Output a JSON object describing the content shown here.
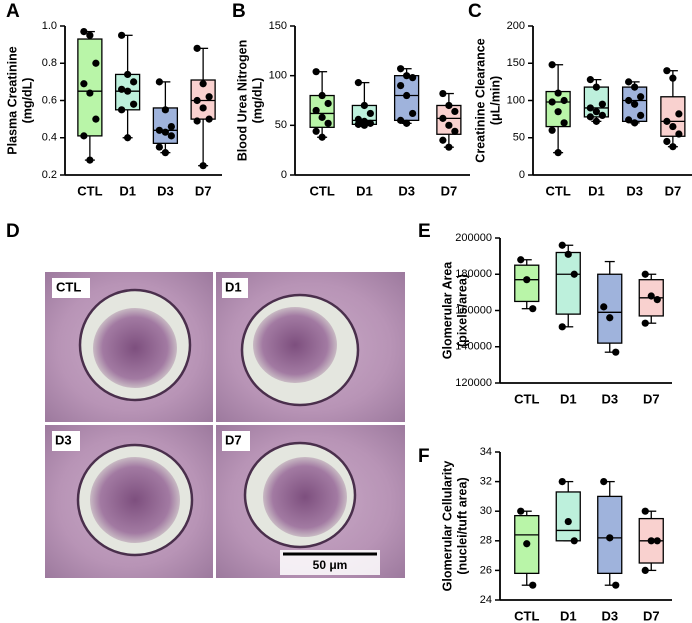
{
  "chart_data": [
    {
      "type": "box",
      "panel": "A",
      "y_label": [
        "Plasma Creatinine",
        "(mg/dL)"
      ],
      "categories": [
        "CTL",
        "D1",
        "D3",
        "D7"
      ],
      "colors": [
        "#b9f5a8",
        "#bdf0dc",
        "#9fb3dc",
        "#f9d1cf"
      ],
      "ylim": [
        0.2,
        1
      ],
      "yticks": [
        0.2,
        0.4,
        0.6,
        0.8,
        {
          "value": 1,
          "label": "1.0"
        }
      ],
      "boxes": [
        {
          "min": 0.28,
          "q1": 0.41,
          "median": 0.65,
          "q3": 0.93,
          "max": 0.97,
          "points": [
            0.97,
            0.95,
            0.8,
            0.69,
            0.64,
            0.5,
            0.41,
            0.28
          ]
        },
        {
          "min": 0.4,
          "q1": 0.55,
          "median": 0.65,
          "q3": 0.74,
          "max": 0.95,
          "points": [
            0.95,
            0.74,
            0.7,
            0.66,
            0.65,
            0.58,
            0.55,
            0.4
          ]
        },
        {
          "min": 0.32,
          "q1": 0.37,
          "median": 0.44,
          "q3": 0.56,
          "max": 0.7,
          "points": [
            0.7,
            0.55,
            0.46,
            0.44,
            0.43,
            0.41,
            0.35,
            0.32
          ]
        },
        {
          "min": 0.25,
          "q1": 0.5,
          "median": 0.6,
          "q3": 0.71,
          "max": 0.88,
          "points": [
            0.88,
            0.69,
            0.62,
            0.6,
            0.56,
            0.5,
            0.49,
            0.25
          ]
        }
      ]
    },
    {
      "type": "box",
      "panel": "B",
      "y_label": [
        "Blood Urea Nitrogen",
        "(mg/dL)"
      ],
      "categories": [
        "CTL",
        "D1",
        "D3",
        "D7"
      ],
      "colors": [
        "#b9f5a8",
        "#bdf0dc",
        "#9fb3dc",
        "#f9d1cf"
      ],
      "ylim": [
        0,
        150
      ],
      "yticks": [
        0,
        50,
        100,
        150
      ],
      "boxes": [
        {
          "min": 38,
          "q1": 48,
          "median": 62,
          "q3": 80,
          "max": 104,
          "points": [
            104,
            80,
            72,
            65,
            58,
            52,
            44,
            38
          ]
        },
        {
          "min": 50,
          "q1": 51,
          "median": 55,
          "q3": 70,
          "max": 93,
          "points": [
            93,
            70,
            62,
            56,
            54,
            52,
            51,
            50
          ]
        },
        {
          "min": 52,
          "q1": 55,
          "median": 80,
          "q3": 100,
          "max": 107,
          "points": [
            107,
            100,
            98,
            90,
            80,
            62,
            55,
            52
          ]
        },
        {
          "min": 28,
          "q1": 41,
          "median": 57,
          "q3": 70,
          "max": 82,
          "points": [
            82,
            70,
            64,
            57,
            50,
            44,
            35,
            28
          ]
        }
      ]
    },
    {
      "type": "box",
      "panel": "C",
      "y_label": [
        "Creatinine Clearance",
        "(μL/min)"
      ],
      "categories": [
        "CTL",
        "D1",
        "D3",
        "D7"
      ],
      "colors": [
        "#b9f5a8",
        "#bdf0dc",
        "#9fb3dc",
        "#f9d1cf"
      ],
      "ylim": [
        0,
        200
      ],
      "yticks": [
        0,
        50,
        100,
        150,
        200
      ],
      "boxes": [
        {
          "min": 30,
          "q1": 65,
          "median": 98,
          "q3": 112,
          "max": 148,
          "points": [
            148,
            110,
            100,
            98,
            85,
            70,
            60,
            30
          ]
        },
        {
          "min": 72,
          "q1": 78,
          "median": 90,
          "q3": 118,
          "max": 128,
          "points": [
            128,
            118,
            95,
            90,
            85,
            80,
            78,
            72
          ]
        },
        {
          "min": 70,
          "q1": 72,
          "median": 100,
          "q3": 118,
          "max": 125,
          "points": [
            125,
            118,
            105,
            100,
            95,
            80,
            74,
            70
          ]
        },
        {
          "min": 38,
          "q1": 52,
          "median": 72,
          "q3": 105,
          "max": 140,
          "points": [
            140,
            130,
            82,
            72,
            65,
            55,
            45,
            38
          ]
        }
      ]
    },
    {
      "type": "box",
      "panel": "E",
      "y_label": [
        "Glomerular Area",
        "(pixels/area)"
      ],
      "categories": [
        "CTL",
        "D1",
        "D3",
        "D7"
      ],
      "colors": [
        "#b9f5a8",
        "#bdf0dc",
        "#9fb3dc",
        "#f9d1cf"
      ],
      "ylim": [
        120000,
        200000
      ],
      "yticks": [
        120000,
        140000,
        160000,
        180000,
        200000
      ],
      "boxes": [
        {
          "min": 161000,
          "q1": 165000,
          "median": 177000,
          "q3": 185000,
          "max": 188000,
          "points": [
            188000,
            177000,
            161000
          ]
        },
        {
          "min": 151000,
          "q1": 158000,
          "median": 180000,
          "q3": 192000,
          "max": 196000,
          "points": [
            196000,
            191000,
            180000,
            151000
          ]
        },
        {
          "min": 137000,
          "q1": 142000,
          "median": 159000,
          "q3": 180000,
          "max": 187000,
          "points": [
            162000,
            156000,
            137000
          ]
        },
        {
          "min": 153000,
          "q1": 157000,
          "median": 167000,
          "q3": 177000,
          "max": 180000,
          "points": [
            180000,
            168000,
            166000,
            153000
          ]
        }
      ]
    },
    {
      "type": "box",
      "panel": "F",
      "y_label": [
        "Glomerular Cellularity",
        "(nuclei/tuft area)"
      ],
      "categories": [
        "CTL",
        "D1",
        "D3",
        "D7"
      ],
      "colors": [
        "#b9f5a8",
        "#bdf0dc",
        "#9fb3dc",
        "#f9d1cf"
      ],
      "ylim": [
        24,
        34
      ],
      "yticks": [
        24,
        26,
        28,
        30,
        32,
        34
      ],
      "boxes": [
        {
          "min": 25,
          "q1": 25.8,
          "median": 28.4,
          "q3": 29.7,
          "max": 30,
          "points": [
            30,
            27.8,
            25
          ]
        },
        {
          "min": 28,
          "q1": 28,
          "median": 28.7,
          "q3": 31.3,
          "max": 32,
          "points": [
            32,
            29.3,
            28
          ]
        },
        {
          "min": 25,
          "q1": 25.8,
          "median": 28.2,
          "q3": 31,
          "max": 32,
          "points": [
            32,
            28.2,
            25
          ]
        },
        {
          "min": 26,
          "q1": 26.5,
          "median": 28,
          "q3": 29.5,
          "max": 30,
          "points": [
            30,
            28,
            28,
            26
          ]
        }
      ]
    }
  ],
  "micrograph": {
    "panel": "D",
    "labels": [
      "CTL",
      "D1",
      "D3",
      "D7"
    ],
    "scale_bar": "50 μm"
  }
}
